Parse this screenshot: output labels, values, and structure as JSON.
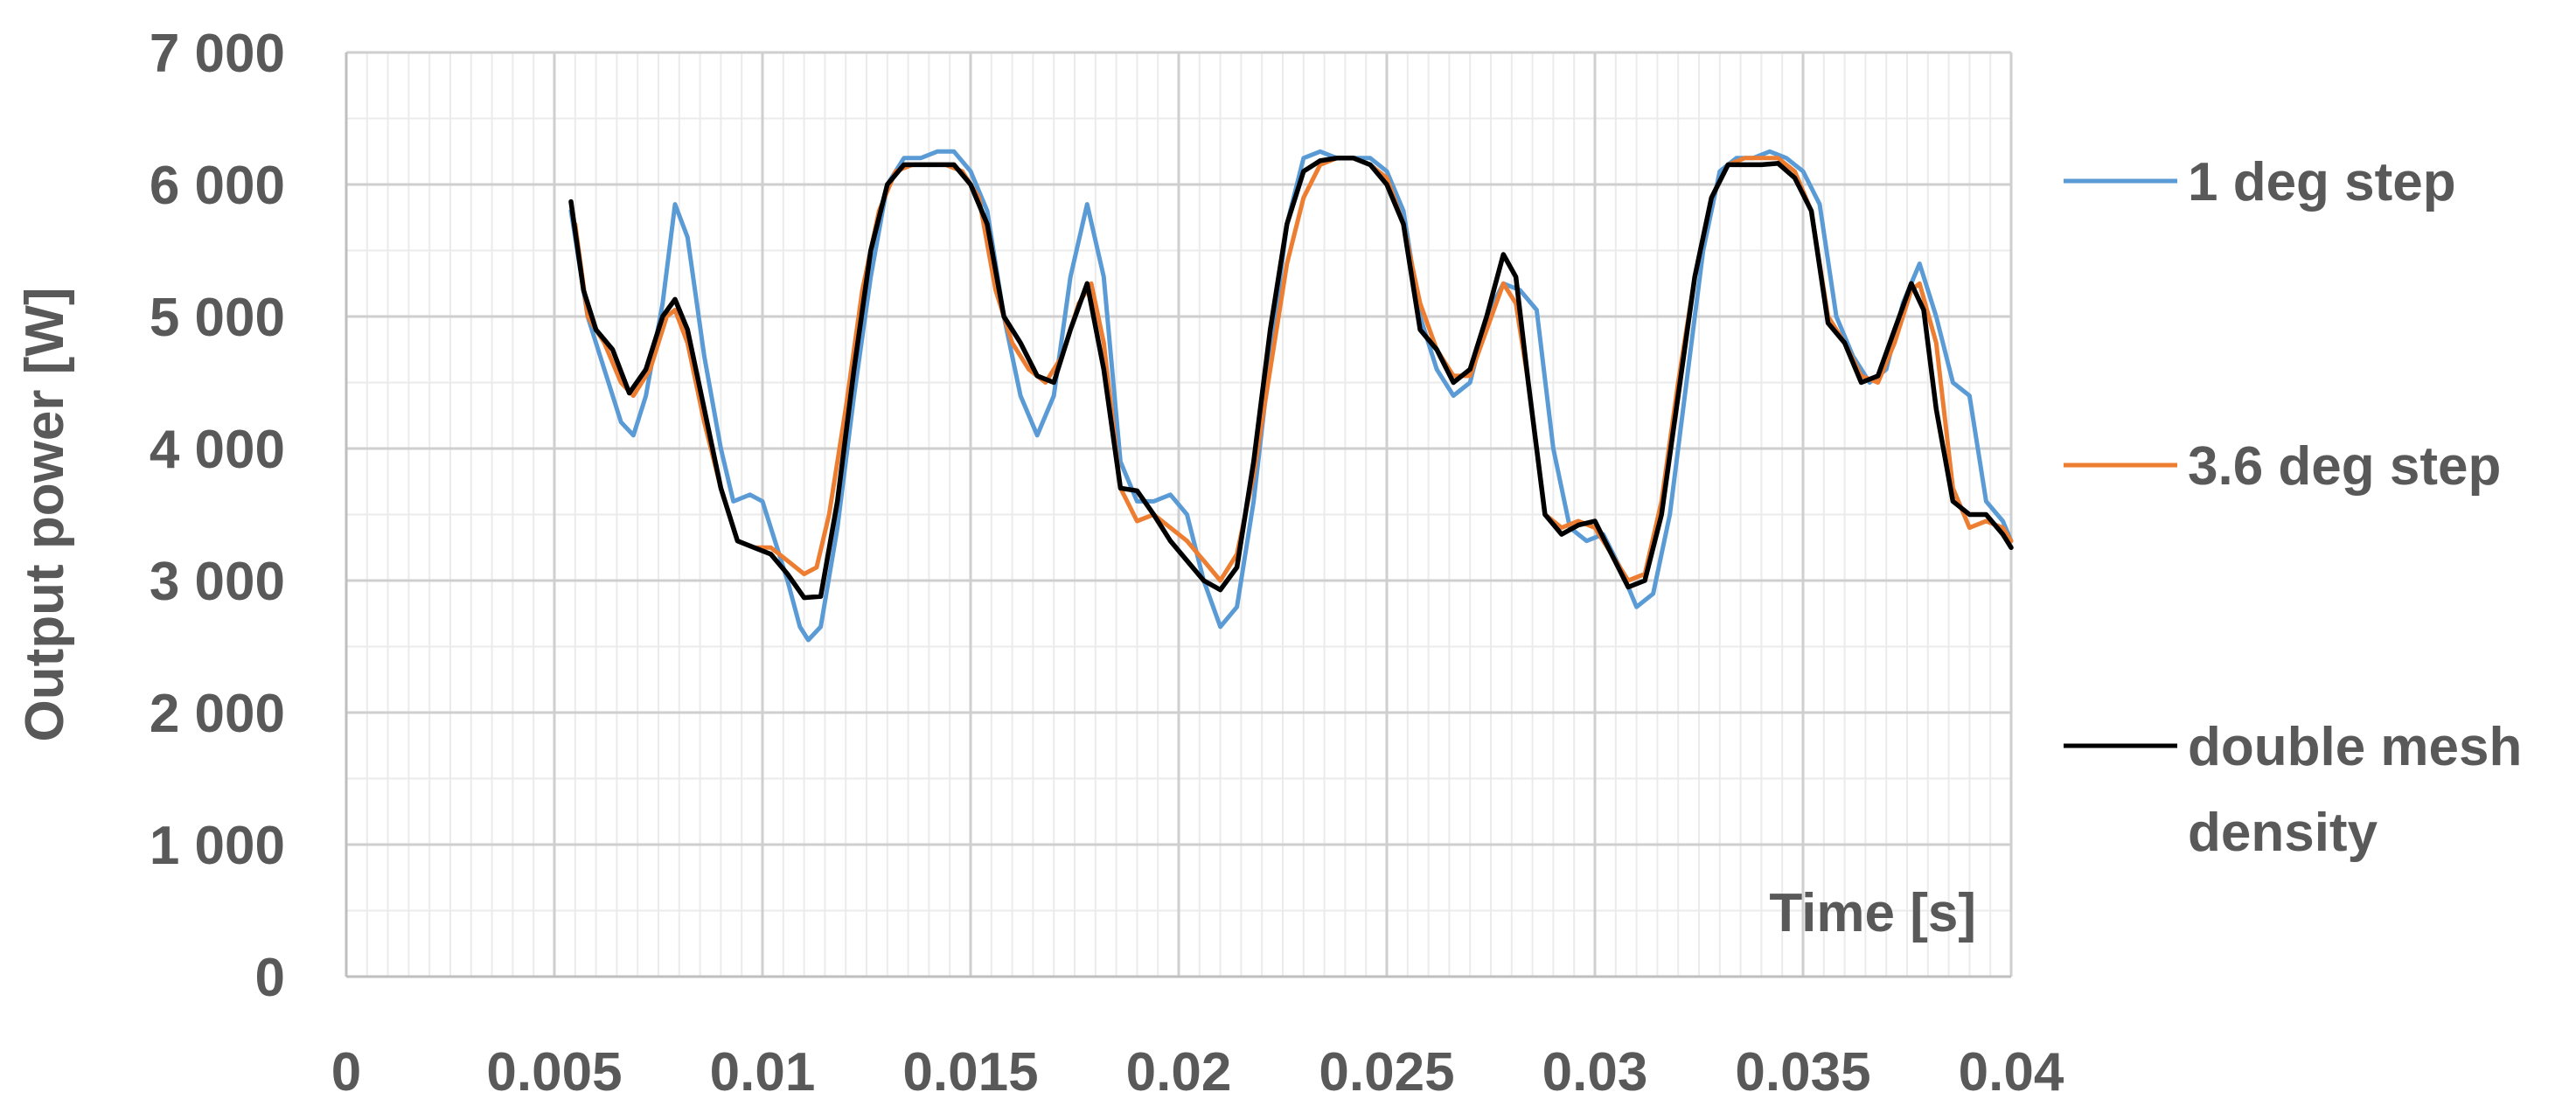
{
  "chart_data": {
    "type": "line",
    "title": "",
    "xlabel": "Time [s]",
    "ylabel": "Output power [W]",
    "xlim": [
      0,
      0.04
    ],
    "ylim": [
      0,
      7000
    ],
    "x_ticks": [
      0,
      0.005,
      0.01,
      0.015,
      0.02,
      0.025,
      0.03,
      0.035,
      0.04
    ],
    "x_tick_labels": [
      "0",
      "0.005",
      "0.01",
      "0.015",
      "0.02",
      "0.025",
      "0.03",
      "0.035",
      "0.04"
    ],
    "y_ticks": [
      0,
      1000,
      2000,
      3000,
      4000,
      5000,
      6000,
      7000
    ],
    "y_tick_labels": [
      "0",
      "1 000",
      "2 000",
      "3 000",
      "4 000",
      "5 000",
      "6 000",
      "7 000"
    ],
    "grid": "major and minor",
    "legend_position": "right",
    "series": [
      {
        "name": "1 deg step",
        "color": "#5b9bd5",
        "points": [
          [
            0.0054,
            5800
          ],
          [
            0.0058,
            5000
          ],
          [
            0.0062,
            4600
          ],
          [
            0.0066,
            4200
          ],
          [
            0.0069,
            4100
          ],
          [
            0.0072,
            4400
          ],
          [
            0.0076,
            5100
          ],
          [
            0.0079,
            5850
          ],
          [
            0.0082,
            5600
          ],
          [
            0.0086,
            4700
          ],
          [
            0.009,
            4000
          ],
          [
            0.0093,
            3600
          ],
          [
            0.0097,
            3650
          ],
          [
            0.01,
            3600
          ],
          [
            0.0103,
            3300
          ],
          [
            0.0106,
            3000
          ],
          [
            0.0109,
            2650
          ],
          [
            0.0111,
            2550
          ],
          [
            0.0114,
            2650
          ],
          [
            0.0118,
            3400
          ],
          [
            0.0122,
            4400
          ],
          [
            0.0126,
            5300
          ],
          [
            0.013,
            6000
          ],
          [
            0.0134,
            6200
          ],
          [
            0.0138,
            6200
          ],
          [
            0.0142,
            6250
          ],
          [
            0.0146,
            6250
          ],
          [
            0.015,
            6100
          ],
          [
            0.0154,
            5800
          ],
          [
            0.0158,
            5000
          ],
          [
            0.0162,
            4400
          ],
          [
            0.0166,
            4100
          ],
          [
            0.017,
            4400
          ],
          [
            0.0174,
            5300
          ],
          [
            0.0178,
            5850
          ],
          [
            0.0182,
            5300
          ],
          [
            0.0186,
            3900
          ],
          [
            0.019,
            3600
          ],
          [
            0.0194,
            3600
          ],
          [
            0.0198,
            3650
          ],
          [
            0.0202,
            3500
          ],
          [
            0.0206,
            3000
          ],
          [
            0.021,
            2650
          ],
          [
            0.0214,
            2800
          ],
          [
            0.0218,
            3600
          ],
          [
            0.0222,
            4700
          ],
          [
            0.0226,
            5700
          ],
          [
            0.023,
            6200
          ],
          [
            0.0234,
            6250
          ],
          [
            0.0238,
            6200
          ],
          [
            0.0242,
            6200
          ],
          [
            0.0246,
            6200
          ],
          [
            0.025,
            6100
          ],
          [
            0.0254,
            5800
          ],
          [
            0.0258,
            5000
          ],
          [
            0.0262,
            4600
          ],
          [
            0.0266,
            4400
          ],
          [
            0.027,
            4500
          ],
          [
            0.0274,
            5000
          ],
          [
            0.0278,
            5250
          ],
          [
            0.0282,
            5200
          ],
          [
            0.0286,
            5050
          ],
          [
            0.029,
            4000
          ],
          [
            0.0294,
            3400
          ],
          [
            0.0298,
            3300
          ],
          [
            0.0302,
            3350
          ],
          [
            0.0306,
            3100
          ],
          [
            0.031,
            2800
          ],
          [
            0.0314,
            2900
          ],
          [
            0.0318,
            3500
          ],
          [
            0.0322,
            4500
          ],
          [
            0.0326,
            5500
          ],
          [
            0.033,
            6100
          ],
          [
            0.0334,
            6200
          ],
          [
            0.0338,
            6200
          ],
          [
            0.0342,
            6250
          ],
          [
            0.0346,
            6200
          ],
          [
            0.035,
            6100
          ],
          [
            0.0354,
            5850
          ],
          [
            0.0358,
            5000
          ],
          [
            0.0362,
            4700
          ],
          [
            0.0366,
            4500
          ],
          [
            0.037,
            4600
          ],
          [
            0.0374,
            5100
          ],
          [
            0.0378,
            5400
          ],
          [
            0.0382,
            5000
          ],
          [
            0.0386,
            4500
          ],
          [
            0.039,
            4400
          ],
          [
            0.0394,
            3600
          ],
          [
            0.0398,
            3450
          ],
          [
            0.04,
            3300
          ]
        ]
      },
      {
        "name": "3.6 deg step",
        "color": "#ed7d31",
        "points": [
          [
            0.0055,
            5700
          ],
          [
            0.0058,
            5000
          ],
          [
            0.0062,
            4800
          ],
          [
            0.0066,
            4500
          ],
          [
            0.0069,
            4400
          ],
          [
            0.0073,
            4600
          ],
          [
            0.0077,
            5000
          ],
          [
            0.0079,
            5050
          ],
          [
            0.0082,
            4800
          ],
          [
            0.0086,
            4200
          ],
          [
            0.009,
            3700
          ],
          [
            0.0094,
            3300
          ],
          [
            0.0098,
            3250
          ],
          [
            0.0102,
            3250
          ],
          [
            0.0106,
            3150
          ],
          [
            0.011,
            3050
          ],
          [
            0.0113,
            3100
          ],
          [
            0.0116,
            3500
          ],
          [
            0.012,
            4300
          ],
          [
            0.0124,
            5200
          ],
          [
            0.0128,
            5800
          ],
          [
            0.0132,
            6100
          ],
          [
            0.0136,
            6150
          ],
          [
            0.014,
            6150
          ],
          [
            0.0144,
            6150
          ],
          [
            0.0148,
            6100
          ],
          [
            0.0152,
            5900
          ],
          [
            0.0156,
            5200
          ],
          [
            0.016,
            4800
          ],
          [
            0.0164,
            4600
          ],
          [
            0.0168,
            4500
          ],
          [
            0.0172,
            4700
          ],
          [
            0.0176,
            5100
          ],
          [
            0.0179,
            5250
          ],
          [
            0.0182,
            4800
          ],
          [
            0.0186,
            3700
          ],
          [
            0.019,
            3450
          ],
          [
            0.0194,
            3500
          ],
          [
            0.0198,
            3400
          ],
          [
            0.0202,
            3300
          ],
          [
            0.0206,
            3150
          ],
          [
            0.021,
            3000
          ],
          [
            0.0214,
            3200
          ],
          [
            0.0218,
            3800
          ],
          [
            0.0222,
            4600
          ],
          [
            0.0226,
            5400
          ],
          [
            0.023,
            5900
          ],
          [
            0.0234,
            6150
          ],
          [
            0.0238,
            6200
          ],
          [
            0.0242,
            6200
          ],
          [
            0.0246,
            6150
          ],
          [
            0.025,
            6050
          ],
          [
            0.0254,
            5700
          ],
          [
            0.0258,
            5100
          ],
          [
            0.0262,
            4750
          ],
          [
            0.0266,
            4550
          ],
          [
            0.027,
            4550
          ],
          [
            0.0274,
            4900
          ],
          [
            0.0278,
            5250
          ],
          [
            0.0281,
            5100
          ],
          [
            0.0284,
            4500
          ],
          [
            0.0288,
            3500
          ],
          [
            0.0292,
            3400
          ],
          [
            0.0296,
            3450
          ],
          [
            0.03,
            3400
          ],
          [
            0.0304,
            3200
          ],
          [
            0.0308,
            3000
          ],
          [
            0.0312,
            3050
          ],
          [
            0.0316,
            3600
          ],
          [
            0.032,
            4500
          ],
          [
            0.0324,
            5300
          ],
          [
            0.0328,
            5900
          ],
          [
            0.0332,
            6150
          ],
          [
            0.0336,
            6200
          ],
          [
            0.034,
            6200
          ],
          [
            0.0344,
            6200
          ],
          [
            0.0348,
            6100
          ],
          [
            0.0352,
            5800
          ],
          [
            0.0356,
            5000
          ],
          [
            0.036,
            4800
          ],
          [
            0.0364,
            4550
          ],
          [
            0.0368,
            4500
          ],
          [
            0.0372,
            4800
          ],
          [
            0.0376,
            5200
          ],
          [
            0.0378,
            5250
          ],
          [
            0.0382,
            4800
          ],
          [
            0.0386,
            3700
          ],
          [
            0.039,
            3400
          ],
          [
            0.0394,
            3450
          ],
          [
            0.0398,
            3400
          ],
          [
            0.04,
            3300
          ]
        ]
      },
      {
        "name": "double mesh density",
        "color": "#000000",
        "points": [
          [
            0.0054,
            5870
          ],
          [
            0.0057,
            5200
          ],
          [
            0.006,
            4900
          ],
          [
            0.0064,
            4750
          ],
          [
            0.0068,
            4420
          ],
          [
            0.0072,
            4600
          ],
          [
            0.0076,
            5000
          ],
          [
            0.0079,
            5130
          ],
          [
            0.0082,
            4900
          ],
          [
            0.0086,
            4300
          ],
          [
            0.009,
            3700
          ],
          [
            0.0094,
            3300
          ],
          [
            0.0098,
            3250
          ],
          [
            0.0102,
            3200
          ],
          [
            0.0106,
            3050
          ],
          [
            0.011,
            2870
          ],
          [
            0.0114,
            2880
          ],
          [
            0.0118,
            3600
          ],
          [
            0.0122,
            4600
          ],
          [
            0.0126,
            5500
          ],
          [
            0.013,
            6000
          ],
          [
            0.0134,
            6150
          ],
          [
            0.0138,
            6150
          ],
          [
            0.0142,
            6150
          ],
          [
            0.0146,
            6150
          ],
          [
            0.015,
            6000
          ],
          [
            0.0154,
            5700
          ],
          [
            0.0158,
            5000
          ],
          [
            0.0162,
            4800
          ],
          [
            0.0166,
            4550
          ],
          [
            0.017,
            4500
          ],
          [
            0.0174,
            4900
          ],
          [
            0.0178,
            5250
          ],
          [
            0.0182,
            4600
          ],
          [
            0.0186,
            3700
          ],
          [
            0.019,
            3680
          ],
          [
            0.0194,
            3500
          ],
          [
            0.0198,
            3300
          ],
          [
            0.0202,
            3150
          ],
          [
            0.0206,
            3000
          ],
          [
            0.021,
            2930
          ],
          [
            0.0214,
            3100
          ],
          [
            0.0218,
            3900
          ],
          [
            0.0222,
            4900
          ],
          [
            0.0226,
            5700
          ],
          [
            0.023,
            6100
          ],
          [
            0.0234,
            6180
          ],
          [
            0.0238,
            6200
          ],
          [
            0.0242,
            6200
          ],
          [
            0.0246,
            6150
          ],
          [
            0.025,
            6000
          ],
          [
            0.0254,
            5700
          ],
          [
            0.0258,
            4900
          ],
          [
            0.0262,
            4750
          ],
          [
            0.0266,
            4500
          ],
          [
            0.027,
            4600
          ],
          [
            0.0274,
            5000
          ],
          [
            0.0278,
            5470
          ],
          [
            0.0281,
            5300
          ],
          [
            0.0284,
            4500
          ],
          [
            0.0288,
            3500
          ],
          [
            0.0292,
            3350
          ],
          [
            0.0296,
            3420
          ],
          [
            0.03,
            3450
          ],
          [
            0.0304,
            3200
          ],
          [
            0.0308,
            2950
          ],
          [
            0.0312,
            3000
          ],
          [
            0.0316,
            3500
          ],
          [
            0.032,
            4400
          ],
          [
            0.0324,
            5300
          ],
          [
            0.0328,
            5900
          ],
          [
            0.0332,
            6150
          ],
          [
            0.0336,
            6150
          ],
          [
            0.034,
            6150
          ],
          [
            0.0344,
            6160
          ],
          [
            0.0348,
            6050
          ],
          [
            0.0352,
            5800
          ],
          [
            0.0356,
            4950
          ],
          [
            0.036,
            4800
          ],
          [
            0.0364,
            4500
          ],
          [
            0.0368,
            4550
          ],
          [
            0.0372,
            4900
          ],
          [
            0.0376,
            5250
          ],
          [
            0.0379,
            5050
          ],
          [
            0.0382,
            4300
          ],
          [
            0.0386,
            3600
          ],
          [
            0.039,
            3500
          ],
          [
            0.0394,
            3500
          ],
          [
            0.0398,
            3350
          ],
          [
            0.04,
            3250
          ]
        ]
      }
    ]
  }
}
